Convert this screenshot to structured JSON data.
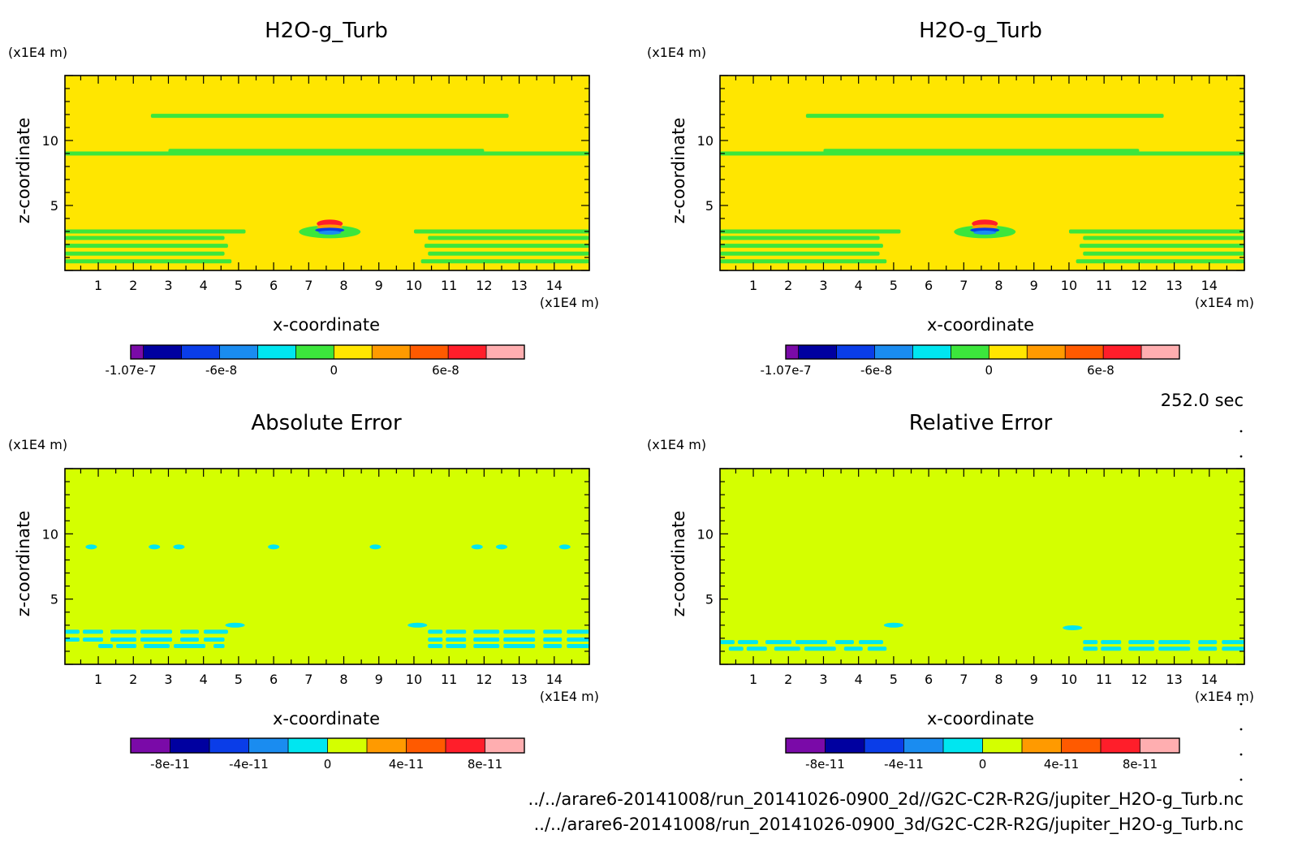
{
  "time_label": "252.0 sec",
  "file_paths": [
    "../../arare6-20141008/run_20141026-0900_2d//G2C-C2R-R2G/jupiter_H2O-g_Turb.nc",
    "../../arare6-20141008/run_20141026-0900_3d/G2C-C2R-R2G/jupiter_H2O-g_Turb.nc"
  ],
  "chart_data": [
    {
      "type": "heatmap",
      "title": "H2O-g_Turb",
      "xlabel": "x-coordinate",
      "ylabel": "z-coordinate",
      "x_unit": "(x1E4 m)",
      "y_unit": "(x1E4 m)",
      "xlim": [
        0.05,
        15.0
      ],
      "ylim": [
        0.0,
        15.0
      ],
      "x_ticks": [
        1,
        2,
        3,
        4,
        5,
        6,
        7,
        8,
        9,
        10,
        11,
        12,
        13,
        14
      ],
      "y_ticks": [
        5,
        10
      ],
      "background_color": "#ffe600",
      "features": {
        "green_lines": [
          {
            "z": 11.9,
            "x": [
              2.5,
              12.7
            ]
          },
          {
            "z": 9.0,
            "x": [
              0.05,
              15.0
            ]
          },
          {
            "z": 9.2,
            "x": [
              3.0,
              12.0
            ]
          }
        ],
        "green_stripes": [
          {
            "z": 3.0,
            "x": [
              0.05,
              5.2
            ]
          },
          {
            "z": 2.5,
            "x": [
              0.05,
              4.6
            ]
          },
          {
            "z": 1.9,
            "x": [
              0.05,
              4.7
            ]
          },
          {
            "z": 1.3,
            "x": [
              0.05,
              4.6
            ]
          },
          {
            "z": 0.7,
            "x": [
              0.05,
              4.8
            ]
          },
          {
            "z": 3.0,
            "x": [
              10.0,
              15.0
            ]
          },
          {
            "z": 2.5,
            "x": [
              10.4,
              15.0
            ]
          },
          {
            "z": 1.9,
            "x": [
              10.3,
              15.0
            ]
          },
          {
            "z": 1.3,
            "x": [
              10.4,
              15.0
            ]
          },
          {
            "z": 0.7,
            "x": [
              10.2,
              15.0
            ]
          }
        ],
        "anomaly": {
          "x": 7.6,
          "z": 3.6
        }
      },
      "colorbar": {
        "colors": [
          "#7a0aa8",
          "#0000a0",
          "#0a3de8",
          "#1a8cf0",
          "#00e6f0",
          "#3ce63c",
          "#ffe600",
          "#ff9a00",
          "#ff5a00",
          "#ff1e2a",
          "#ffaeb0"
        ],
        "widths": [
          1,
          3,
          3,
          3,
          3,
          3,
          3,
          3,
          3,
          3,
          3
        ],
        "ticks": [
          {
            "label": "-1.07e-7",
            "frac": 0.0
          },
          {
            "label": "-6e-8",
            "frac": 0.23
          },
          {
            "label": "0",
            "frac": 0.516
          },
          {
            "label": "6e-8",
            "frac": 0.8
          }
        ]
      }
    },
    {
      "type": "heatmap",
      "title": "H2O-g_Turb",
      "xlabel": "x-coordinate",
      "ylabel": "z-coordinate",
      "x_unit": "(x1E4 m)",
      "y_unit": "(x1E4 m)",
      "xlim": [
        0.05,
        15.0
      ],
      "ylim": [
        0.0,
        15.0
      ],
      "x_ticks": [
        1,
        2,
        3,
        4,
        5,
        6,
        7,
        8,
        9,
        10,
        11,
        12,
        13,
        14
      ],
      "y_ticks": [
        5,
        10
      ],
      "background_color": "#ffe600",
      "features": {
        "green_lines": [
          {
            "z": 11.9,
            "x": [
              2.5,
              12.7
            ]
          },
          {
            "z": 9.0,
            "x": [
              0.05,
              15.0
            ]
          },
          {
            "z": 9.2,
            "x": [
              3.0,
              12.0
            ]
          }
        ],
        "green_stripes": [
          {
            "z": 3.0,
            "x": [
              0.05,
              5.2
            ]
          },
          {
            "z": 2.5,
            "x": [
              0.05,
              4.6
            ]
          },
          {
            "z": 1.9,
            "x": [
              0.05,
              4.7
            ]
          },
          {
            "z": 1.3,
            "x": [
              0.05,
              4.6
            ]
          },
          {
            "z": 0.7,
            "x": [
              0.05,
              4.8
            ]
          },
          {
            "z": 3.0,
            "x": [
              10.0,
              15.0
            ]
          },
          {
            "z": 2.5,
            "x": [
              10.4,
              15.0
            ]
          },
          {
            "z": 1.9,
            "x": [
              10.3,
              15.0
            ]
          },
          {
            "z": 1.3,
            "x": [
              10.4,
              15.0
            ]
          },
          {
            "z": 0.7,
            "x": [
              10.2,
              15.0
            ]
          }
        ],
        "anomaly": {
          "x": 7.6,
          "z": 3.6
        }
      },
      "colorbar": {
        "colors": [
          "#7a0aa8",
          "#0000a0",
          "#0a3de8",
          "#1a8cf0",
          "#00e6f0",
          "#3ce63c",
          "#ffe600",
          "#ff9a00",
          "#ff5a00",
          "#ff1e2a",
          "#ffaeb0"
        ],
        "widths": [
          1,
          3,
          3,
          3,
          3,
          3,
          3,
          3,
          3,
          3,
          3
        ],
        "ticks": [
          {
            "label": "-1.07e-7",
            "frac": 0.0
          },
          {
            "label": "-6e-8",
            "frac": 0.23
          },
          {
            "label": "0",
            "frac": 0.516
          },
          {
            "label": "6e-8",
            "frac": 0.8
          }
        ]
      }
    },
    {
      "type": "heatmap",
      "title": "Absolute Error",
      "xlabel": "x-coordinate",
      "ylabel": "z-coordinate",
      "x_unit": "(x1E4 m)",
      "y_unit": "(x1E4 m)",
      "xlim": [
        0.05,
        15.0
      ],
      "ylim": [
        0.0,
        15.0
      ],
      "x_ticks": [
        1,
        2,
        3,
        4,
        5,
        6,
        7,
        8,
        9,
        10,
        11,
        12,
        13,
        14
      ],
      "y_ticks": [
        5,
        10
      ],
      "background_color": "#d4ff00",
      "features": {
        "cyan_dots": [
          {
            "x": 0.8,
            "z": 9.0
          },
          {
            "x": 2.6,
            "z": 9.0
          },
          {
            "x": 3.3,
            "z": 9.0
          },
          {
            "x": 6.0,
            "z": 9.0
          },
          {
            "x": 8.9,
            "z": 9.0
          },
          {
            "x": 11.8,
            "z": 9.0
          },
          {
            "x": 12.5,
            "z": 9.0
          },
          {
            "x": 14.3,
            "z": 9.0
          }
        ],
        "cyan_bands": [
          {
            "z": 2.5,
            "x": [
              0.05,
              4.7
            ]
          },
          {
            "z": 1.9,
            "x": [
              0.05,
              4.6
            ]
          },
          {
            "z": 1.4,
            "x": [
              1.0,
              4.6
            ]
          },
          {
            "z": 2.5,
            "x": [
              10.4,
              15.0
            ]
          },
          {
            "z": 1.9,
            "x": [
              10.4,
              15.0
            ]
          },
          {
            "z": 1.4,
            "x": [
              10.4,
              15.0
            ]
          }
        ],
        "cyan_bumps": [
          {
            "x": 4.9,
            "z": 3.0
          },
          {
            "x": 10.1,
            "z": 3.0
          }
        ]
      },
      "colorbar": {
        "colors": [
          "#7a0aa8",
          "#0000a0",
          "#0a3de8",
          "#1a8cf0",
          "#00e6f0",
          "#d4ff00",
          "#ff9a00",
          "#ff5a00",
          "#ff1e2a",
          "#ffaeb0"
        ],
        "widths": [
          1,
          1,
          1,
          1,
          1,
          1,
          1,
          1,
          1,
          1
        ],
        "ticks": [
          {
            "label": "-8e-11",
            "frac": 0.1
          },
          {
            "label": "-4e-11",
            "frac": 0.3
          },
          {
            "label": "0",
            "frac": 0.5
          },
          {
            "label": "4e-11",
            "frac": 0.7
          },
          {
            "label": "8e-11",
            "frac": 0.9
          }
        ]
      }
    },
    {
      "type": "heatmap",
      "title": "Relative Error",
      "xlabel": "x-coordinate",
      "ylabel": "z-coordinate",
      "x_unit": "(x1E4 m)",
      "y_unit": "(x1E4 m)",
      "xlim": [
        0.05,
        15.0
      ],
      "ylim": [
        0.0,
        15.0
      ],
      "x_ticks": [
        1,
        2,
        3,
        4,
        5,
        6,
        7,
        8,
        9,
        10,
        11,
        12,
        13,
        14
      ],
      "y_ticks": [
        5,
        10
      ],
      "background_color": "#d4ff00",
      "features": {
        "cyan_dots": [],
        "cyan_bands": [
          {
            "z": 1.7,
            "x": [
              0.05,
              4.8
            ]
          },
          {
            "z": 1.2,
            "x": [
              0.3,
              4.8
            ]
          },
          {
            "z": 1.7,
            "x": [
              10.4,
              15.0
            ]
          },
          {
            "z": 1.2,
            "x": [
              10.4,
              15.0
            ]
          }
        ],
        "cyan_bumps": [
          {
            "x": 5.0,
            "z": 3.0
          },
          {
            "x": 10.1,
            "z": 2.8
          }
        ]
      },
      "colorbar": {
        "colors": [
          "#7a0aa8",
          "#0000a0",
          "#0a3de8",
          "#1a8cf0",
          "#00e6f0",
          "#d4ff00",
          "#ff9a00",
          "#ff5a00",
          "#ff1e2a",
          "#ffaeb0"
        ],
        "widths": [
          1,
          1,
          1,
          1,
          1,
          1,
          1,
          1,
          1,
          1
        ],
        "ticks": [
          {
            "label": "-8e-11",
            "frac": 0.1
          },
          {
            "label": "-4e-11",
            "frac": 0.3
          },
          {
            "label": "0",
            "frac": 0.5
          },
          {
            "label": "4e-11",
            "frac": 0.7
          },
          {
            "label": "8e-11",
            "frac": 0.9
          }
        ]
      }
    }
  ]
}
